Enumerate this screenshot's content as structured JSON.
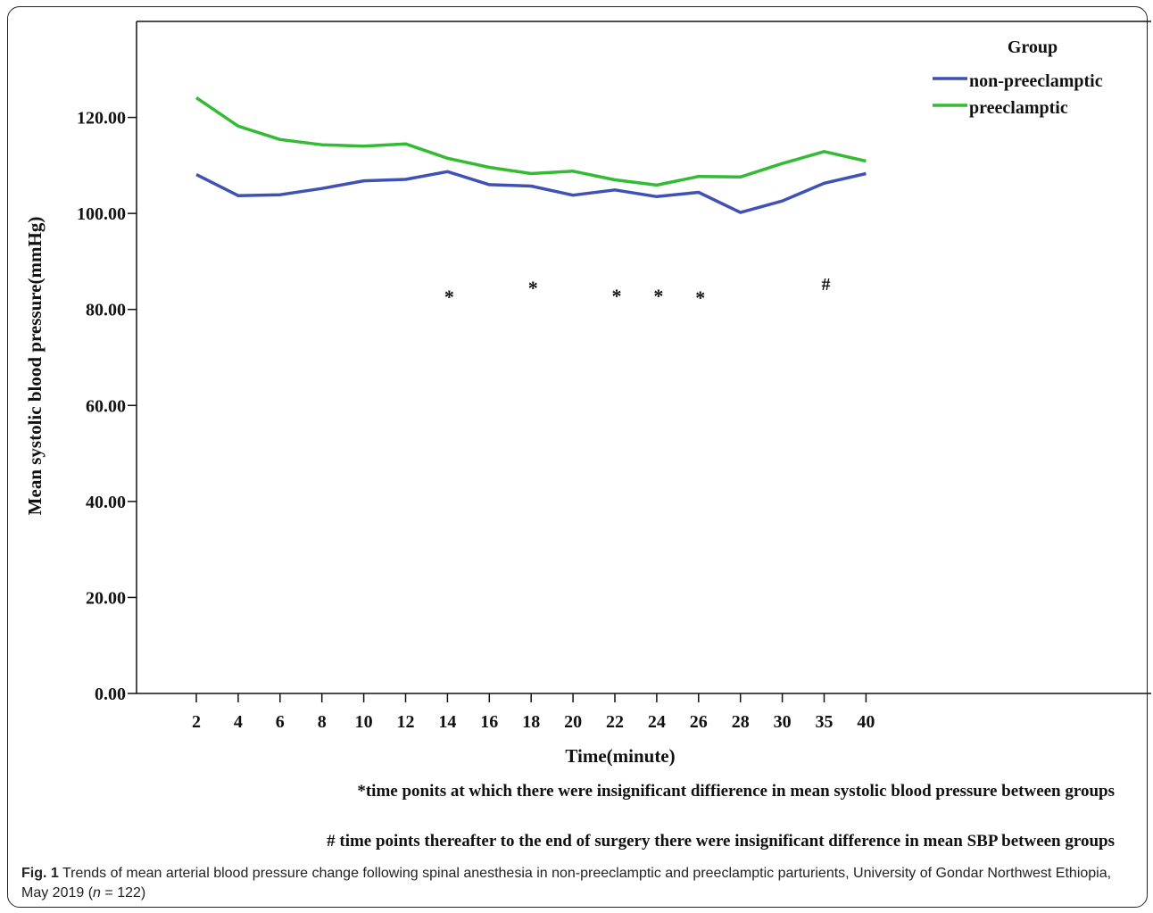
{
  "chart_data": {
    "type": "line",
    "x": [
      "2",
      "4",
      "6",
      "8",
      "10",
      "12",
      "14",
      "16",
      "18",
      "20",
      "22",
      "24",
      "26",
      "28",
      "30",
      "35",
      "40"
    ],
    "series": [
      {
        "name": "non-preeclamptic",
        "color": "#3f51b5",
        "values": [
          108.1,
          103.7,
          103.9,
          105.2,
          106.8,
          107.1,
          108.7,
          106.0,
          105.7,
          103.8,
          104.9,
          103.5,
          104.4,
          100.2,
          102.6,
          106.3,
          108.3
        ]
      },
      {
        "name": "preeclamptic",
        "color": "#33bb33",
        "values": [
          124.1,
          118.2,
          115.4,
          114.3,
          114.0,
          114.5,
          111.5,
          109.6,
          108.3,
          108.8,
          107.0,
          105.9,
          107.7,
          107.6,
          110.4,
          112.9,
          110.9
        ]
      }
    ],
    "ylim": [
      0,
      140
    ],
    "yticks": [
      "0.00",
      "20.00",
      "40.00",
      "60.00",
      "80.00",
      "100.00",
      "120.00"
    ],
    "xlabel": "Time(minute)",
    "ylabel": "Mean systolic blood pressure(mmHg)",
    "legend_title": "Group",
    "legend_position": "top-right, outside plot",
    "grid": false,
    "markers": [
      {
        "x_index": 6,
        "symbol": "*",
        "y": 83.5
      },
      {
        "x_index": 8,
        "symbol": "*",
        "y": 85.3
      },
      {
        "x_index": 10,
        "symbol": "*",
        "y": 83.7
      },
      {
        "x_index": 11,
        "symbol": "*",
        "y": 83.7
      },
      {
        "x_index": 12,
        "symbol": "*",
        "y": 83.3
      },
      {
        "x_index": 15,
        "symbol": "#",
        "y": 85.5
      }
    ],
    "notes": [
      "*time ponits at which there were insignificant diffierence in mean systolic blood pressure between groups",
      "# time points thereafter to the end of surgery there were insignificant difference in mean SBP between groups"
    ]
  },
  "caption": {
    "label": "Fig. 1",
    "text_before_n": " Trends of mean arterial blood pressure change following spinal anesthesia in non-preeclamptic and preeclamptic parturients, University of Gondar Northwest Ethiopia, May 2019 (",
    "n_symbol": "n",
    "text_after_n": " = 122)"
  }
}
